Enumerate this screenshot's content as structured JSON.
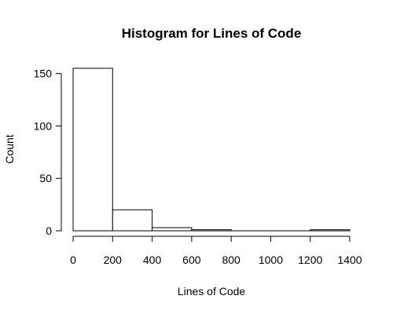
{
  "chart_data": {
    "type": "bar",
    "title": "Histogram for Lines of Code",
    "xlabel": "Lines of Code",
    "ylabel": "Count",
    "bins": [
      {
        "from": 0,
        "to": 200,
        "count": 155
      },
      {
        "from": 200,
        "to": 400,
        "count": 20
      },
      {
        "from": 400,
        "to": 600,
        "count": 3
      },
      {
        "from": 600,
        "to": 800,
        "count": 1
      },
      {
        "from": 800,
        "to": 1000,
        "count": 0
      },
      {
        "from": 1000,
        "to": 1200,
        "count": 0
      },
      {
        "from": 1200,
        "to": 1400,
        "count": 1
      }
    ],
    "xlim": [
      0,
      1400
    ],
    "ylim": [
      0,
      155
    ],
    "xticks": [
      "0",
      "200",
      "400",
      "600",
      "800",
      "1000",
      "1200",
      "1400"
    ],
    "yticks": [
      "0",
      "50",
      "100",
      "150"
    ],
    "grid": false,
    "bar_fill": "#ffffff",
    "bar_stroke": "#000000"
  }
}
